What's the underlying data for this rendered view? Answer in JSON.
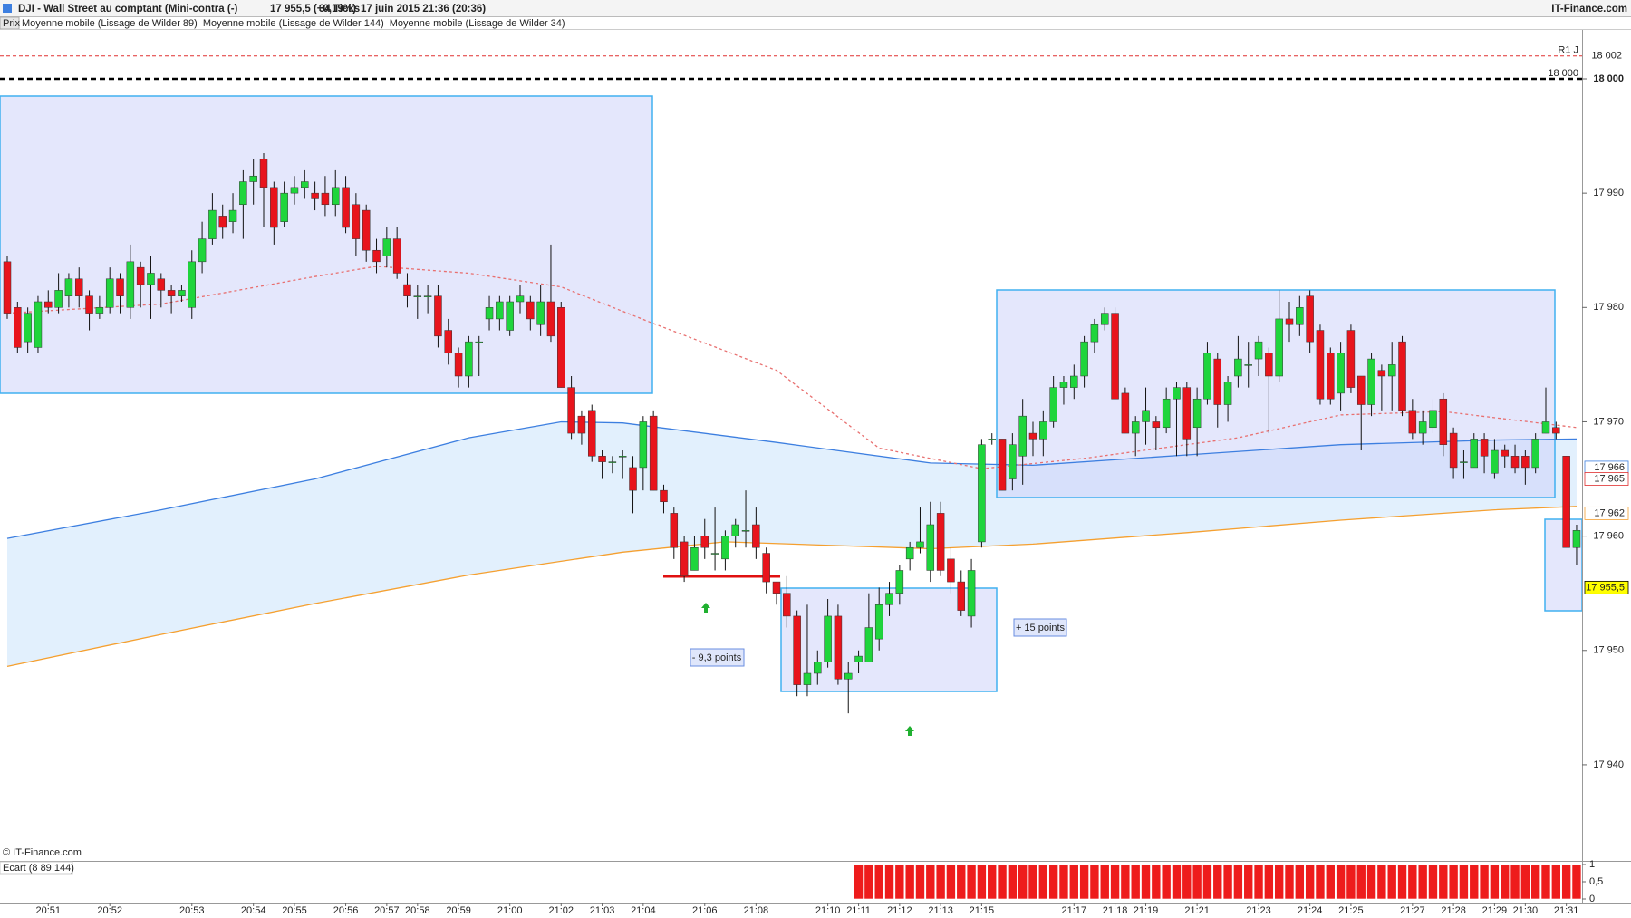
{
  "header": {
    "title": "DJI - Wall Street au comptant (Mini-contra (-)",
    "quote": "17 955,5 (+0,19%)",
    "ticks": "34 Ticks",
    "date": "17 juin 2015 21:36 (20:36)",
    "brand": "IT-Finance.com",
    "price_label": "Prix",
    "watermark": "© IT-Finance.com"
  },
  "annotations": [
    "- 9,3 points",
    "+ 15 points"
  ],
  "chart_data": {
    "type": "candlestick",
    "up_color": "#1fd53c",
    "down_color": "#e8141c",
    "categories": [
      null,
      null,
      null,
      null,
      "20:51",
      null,
      null,
      null,
      null,
      null,
      "20:52",
      null,
      null,
      null,
      null,
      null,
      null,
      null,
      "20:53",
      null,
      null,
      null,
      null,
      null,
      "20:54",
      null,
      null,
      null,
      "20:55",
      null,
      null,
      null,
      null,
      "20:56",
      null,
      null,
      null,
      "20:57",
      null,
      null,
      "20:58",
      null,
      null,
      null,
      "20:59",
      null,
      null,
      null,
      null,
      "21:00",
      null,
      null,
      null,
      null,
      "21:02",
      null,
      null,
      null,
      "21:03",
      null,
      null,
      null,
      "21:04",
      null,
      null,
      null,
      null,
      null,
      "21:06",
      null,
      null,
      null,
      null,
      "21:08",
      null,
      null,
      null,
      null,
      null,
      null,
      "21:10",
      null,
      null,
      "21:11",
      null,
      null,
      null,
      "21:12",
      null,
      null,
      null,
      "21:13",
      null,
      null,
      null,
      "21:15",
      null,
      null,
      null,
      null,
      null,
      null,
      null,
      null,
      "21:17",
      null,
      null,
      null,
      "21:18",
      null,
      null,
      "21:19",
      null,
      null,
      null,
      null,
      "21:21",
      null,
      null,
      null,
      null,
      null,
      "21:23",
      null,
      null,
      null,
      null,
      "21:24",
      null,
      null,
      null,
      "21:25",
      null,
      null,
      null,
      null,
      null,
      "21:27",
      null,
      null,
      null,
      "21:28",
      null,
      null,
      null,
      "21:29",
      null,
      null,
      "21:30",
      null,
      null,
      null,
      "21:31",
      null
    ],
    "open": [
      17984,
      17980,
      17977,
      17976.5,
      17980.5,
      17980,
      17981,
      17982.5,
      17981,
      17979.5,
      17980,
      17982.5,
      17980,
      17983.5,
      17982,
      17982.5,
      17981.5,
      17981,
      17980,
      17984,
      17986,
      17988,
      17987.5,
      17989,
      17991,
      17993,
      17990.5,
      17987.5,
      17990,
      17990.5,
      17990,
      17990,
      17989,
      17990.5,
      17989,
      17988.5,
      17985,
      17984.5,
      17986,
      17982,
      17981,
      17981,
      17981,
      17978,
      17976,
      17974,
      17977,
      17979,
      17979,
      17978,
      17980.5,
      17980.5,
      17978.5,
      17980.5,
      17980,
      17973,
      17970.5,
      17971,
      17967,
      17966.5,
      17967,
      17966,
      17966,
      17970.5,
      17964,
      17962,
      17959.5,
      17957,
      17960,
      17958.5,
      17958,
      17960,
      17960.5,
      17961,
      17958.5,
      17956,
      17955,
      17953,
      17947,
      17948,
      17949,
      17953,
      17947.5,
      17949,
      17949,
      17951,
      17954,
      17955,
      17958,
      17959,
      17957,
      17962,
      17958,
      17956,
      17953,
      17959.5,
      17968.5,
      17968.5,
      17965,
      17967,
      17969,
      17968.5,
      17970,
      17973,
      17973,
      17974,
      17977,
      17978.5,
      17979.5,
      17972.5,
      17969,
      17970,
      17970,
      17969.5,
      17972,
      17973,
      17969.5,
      17972,
      17975.5,
      17971.5,
      17974,
      17975,
      17975.5,
      17976,
      17974,
      17979,
      17978.5,
      17981,
      17978,
      17976,
      17972.5,
      17978,
      17974,
      17971.5,
      17974.5,
      17974,
      17977,
      17971,
      17969,
      17969.5,
      17972,
      17969,
      17966.5,
      17966,
      17968.5,
      17965.5,
      17967.5,
      17967,
      17967,
      17966,
      17969,
      17969.5,
      17967,
      17959
    ],
    "high": [
      17984.5,
      17980.5,
      17980,
      17981,
      17981.5,
      17983,
      17983,
      17983.5,
      17981.5,
      17981,
      17983.5,
      17983,
      17985.5,
      17984,
      17984.5,
      17983,
      17982,
      17982,
      17985,
      17987.5,
      17990,
      17989,
      17990,
      17992,
      17993,
      17993.5,
      17991,
      17991,
      17991.5,
      17992,
      17991,
      17991.5,
      17992,
      17991.5,
      17990,
      17989,
      17986,
      17987,
      17987,
      17983,
      17982,
      17982,
      17982,
      17979,
      17976.5,
      17977.5,
      17977.5,
      17981,
      17981,
      17981,
      17982,
      17981,
      17982,
      17985.5,
      17980.5,
      17974,
      17971,
      17971.5,
      17967.5,
      17967,
      17967.5,
      17967,
      17970.5,
      17971,
      17964.5,
      17962.5,
      17960,
      17960,
      17961.5,
      17962.5,
      17960.5,
      17961.5,
      17964,
      17962.5,
      17959,
      17956,
      17956.5,
      17953.5,
      17954,
      17950,
      17954.5,
      17954,
      17949,
      17950,
      17955,
      17955.5,
      17956,
      17957.5,
      17959.5,
      17962.5,
      17963,
      17963,
      17959,
      17957,
      17958,
      17968.5,
      17969,
      17968.5,
      17969,
      17972,
      17970,
      17971,
      17974,
      17974,
      17975,
      17977.5,
      17979,
      17980,
      17980,
      17973,
      17970.5,
      17973,
      17970.5,
      17973,
      17973.5,
      17973.5,
      17973,
      17977,
      17976,
      17974,
      17977.5,
      17977,
      17977.5,
      17976.5,
      17981.5,
      17980.5,
      17981,
      17981.5,
      17978.5,
      17976.5,
      17977,
      17978.5,
      17974,
      17976,
      17975,
      17977,
      17977.5,
      17972,
      17971,
      17972,
      17972.5,
      17969.5,
      17967.5,
      17969,
      17969,
      17968.5,
      17968,
      17968,
      17967.5,
      17969,
      17973,
      17970,
      17967,
      17961
    ],
    "low": [
      17979,
      17976,
      17976,
      17976,
      17979.5,
      17979.5,
      17980,
      17980,
      17978,
      17979,
      17979.5,
      17979.5,
      17979,
      17980,
      17979,
      17980,
      17979.5,
      17980.5,
      17979,
      17983,
      17985.5,
      17986,
      17986.5,
      17986,
      17989,
      17987,
      17985.5,
      17987,
      17989,
      17989.5,
      17988.5,
      17988,
      17988,
      17986.5,
      17984.5,
      17984,
      17983,
      17983.5,
      17982.5,
      17980,
      17979,
      17979.5,
      17976.5,
      17975,
      17973,
      17973,
      17974,
      17978,
      17978,
      17977.5,
      17979.5,
      17978,
      17977.5,
      17977,
      17973,
      17968.5,
      17968,
      17966.5,
      17965,
      17965.5,
      17965,
      17962,
      17964,
      17964,
      17962,
      17958,
      17956,
      17957,
      17958,
      17957,
      17957,
      17959,
      17959,
      17958,
      17955,
      17954,
      17952,
      17946,
      17946,
      17947,
      17948.5,
      17947,
      17944.5,
      17948,
      17949,
      17950,
      17953,
      17954,
      17957,
      17958.5,
      17956,
      17956.5,
      17955,
      17953,
      17952,
      17959,
      17968,
      17964,
      17964,
      17964.5,
      17967,
      17967,
      17969.5,
      17971.5,
      17972,
      17973,
      17976,
      17978,
      17972,
      17969,
      17967,
      17968,
      17967.5,
      17969,
      17967,
      17967,
      17967,
      17971.5,
      17969.5,
      17970,
      17973,
      17973,
      17974,
      17969,
      17973.5,
      17977,
      17977.5,
      17976,
      17971.5,
      17971.5,
      17971,
      17972.5,
      17967.5,
      17970.5,
      17971,
      17971,
      17970.5,
      17968.5,
      17968,
      17969,
      17967,
      17965,
      17965,
      17966,
      17965.5,
      17965,
      17966,
      17965.5,
      17964.5,
      17965.5,
      17969,
      17968.5,
      17959,
      17957.5
    ],
    "close": [
      17979.5,
      17976.5,
      17979.5,
      17980.5,
      17980,
      17981.5,
      17982.5,
      17981,
      17979.5,
      17980,
      17982.5,
      17981,
      17984,
      17982,
      17983,
      17981.5,
      17981,
      17981.5,
      17984,
      17986,
      17988.5,
      17987,
      17988.5,
      17991,
      17991.5,
      17990.5,
      17987,
      17990,
      17990.5,
      17991,
      17989.5,
      17989,
      17990.5,
      17987,
      17986,
      17985,
      17984,
      17986,
      17983,
      17981,
      17981,
      17981,
      17977.5,
      17976,
      17974,
      17977,
      17977,
      17980,
      17980.5,
      17980.5,
      17981,
      17979,
      17980.5,
      17977.5,
      17973,
      17969,
      17969,
      17967,
      17966.5,
      17966.5,
      17967,
      17964,
      17970,
      17964,
      17963,
      17959,
      17956.5,
      17959,
      17959,
      17958.5,
      17960,
      17961,
      17960.5,
      17959,
      17956,
      17955,
      17953,
      17947,
      17948,
      17949,
      17953,
      17947.5,
      17948,
      17949.5,
      17952,
      17954,
      17955,
      17957,
      17959,
      17959.5,
      17961,
      17957,
      17956,
      17953.5,
      17957,
      17968,
      17968.5,
      17964,
      17968,
      17970.5,
      17968.5,
      17970,
      17973,
      17973.5,
      17974,
      17977,
      17978.5,
      17979.5,
      17972,
      17969,
      17970,
      17971,
      17969.5,
      17972,
      17973,
      17968.5,
      17972,
      17976,
      17971.5,
      17973.5,
      17975.5,
      17975,
      17977,
      17974,
      17979,
      17978.5,
      17980,
      17977,
      17972,
      17972,
      17976,
      17973,
      17971.5,
      17975.5,
      17974,
      17975,
      17971,
      17969,
      17970,
      17971,
      17968,
      17966,
      17966.5,
      17968.5,
      17967,
      17967.5,
      17967,
      17966,
      17966,
      17968.5,
      17970,
      17969,
      17959,
      17960.5
    ],
    "series": [
      {
        "name": "Moyenne mobile (Lissage de Wilder 89)",
        "color": "#3d7fe0",
        "x": [
          0,
          15,
          30,
          45,
          54,
          60,
          75,
          90,
          100,
          115,
          130,
          145,
          153
        ],
        "values": [
          17959.8,
          17962.3,
          17965,
          17968.6,
          17970,
          17969.9,
          17968.2,
          17966.4,
          17966.2,
          17967.1,
          17968,
          17968.4,
          17968.5
        ]
      },
      {
        "name": "Moyenne mobile (Lissage de Wilder 144)",
        "color": "#f5a030",
        "x": [
          0,
          15,
          30,
          45,
          60,
          70,
          90,
          100,
          115,
          130,
          145,
          153
        ],
        "values": [
          17948.6,
          17951.4,
          17954.1,
          17956.6,
          17958.6,
          17959.5,
          17958.9,
          17959.3,
          17960.3,
          17961.4,
          17962.3,
          17962.6
        ]
      },
      {
        "name": "Moyenne mobile (Lissage de Wilder 34)",
        "color": "#e87070",
        "dash": "3,3",
        "x": [
          0,
          15,
          30,
          36,
          45,
          54,
          63,
          75,
          85,
          95,
          105,
          120,
          130,
          140,
          153
        ],
        "values": [
          17979.5,
          17980.3,
          17982.7,
          17983.6,
          17983,
          17981.8,
          17978.6,
          17974.5,
          17967.7,
          17965.9,
          17966.8,
          17968.6,
          17970.6,
          17970.9,
          17969.5
        ]
      }
    ],
    "band_color": "#e2f0fd",
    "ylim": [
      17931.75,
      18004.28
    ],
    "yticks": [
      {
        "value": 17940,
        "label": "17 940"
      },
      {
        "value": 17950,
        "label": "17 950"
      },
      {
        "value": 17960,
        "label": "17 960"
      },
      {
        "value": 17970,
        "label": "17 970"
      },
      {
        "value": 17980,
        "label": "17 980"
      },
      {
        "value": 17990,
        "label": "17 990"
      },
      {
        "value": 18000,
        "label": "18 000"
      }
    ],
    "levels": [
      {
        "value": 18002,
        "label": "R1 J",
        "tag": "18 002",
        "color": "#e03030",
        "dash": "4,3"
      },
      {
        "value": 18000,
        "label": "18 000",
        "color": "#000000",
        "dash": "6,4"
      }
    ],
    "price_tags": [
      {
        "value": 17966,
        "label": "17 966",
        "color": "#3d7fe0"
      },
      {
        "value": 17965,
        "label": "17 965",
        "color": "#e03030"
      },
      {
        "value": 17962,
        "label": "17 962",
        "color": "#f5a030"
      },
      {
        "value": 17955.5,
        "label": "17 955,5",
        "color": "#000000",
        "fill": "#ffff00"
      }
    ],
    "indicator": {
      "name": "Ecart (8 89 144)",
      "color": "#ee1c1c",
      "ylim": [
        0,
        1
      ],
      "yticks": [
        0,
        {
          "value": 0.5,
          "label": "0,5"
        },
        1
      ],
      "values": [
        null,
        null,
        null,
        null,
        null,
        null,
        null,
        null,
        null,
        null,
        null,
        null,
        null,
        null,
        null,
        null,
        null,
        null,
        null,
        null,
        null,
        null,
        null,
        null,
        null,
        null,
        null,
        null,
        null,
        null,
        null,
        null,
        null,
        null,
        null,
        null,
        null,
        null,
        null,
        null,
        null,
        null,
        null,
        null,
        null,
        null,
        null,
        null,
        null,
        null,
        null,
        null,
        null,
        null,
        null,
        null,
        null,
        null,
        null,
        null,
        null,
        null,
        null,
        null,
        null,
        null,
        null,
        null,
        null,
        null,
        null,
        null,
        null,
        null,
        null,
        null,
        null,
        null,
        null,
        null,
        null,
        null,
        null,
        1,
        1,
        1,
        1,
        1,
        1,
        1,
        1,
        1,
        1,
        1,
        1,
        1,
        1,
        1,
        1,
        1,
        1,
        1,
        1,
        1,
        1,
        1,
        1,
        1,
        1,
        1,
        1,
        1,
        1,
        1,
        1,
        1,
        1,
        1,
        1,
        1,
        1,
        1,
        1,
        1,
        1,
        1,
        1,
        1,
        1,
        1,
        1,
        1,
        1,
        1,
        1,
        1,
        1,
        1,
        1,
        1,
        1,
        1,
        1,
        1,
        1,
        1,
        1,
        1,
        1,
        1,
        1,
        1,
        1,
        1
      ]
    }
  }
}
